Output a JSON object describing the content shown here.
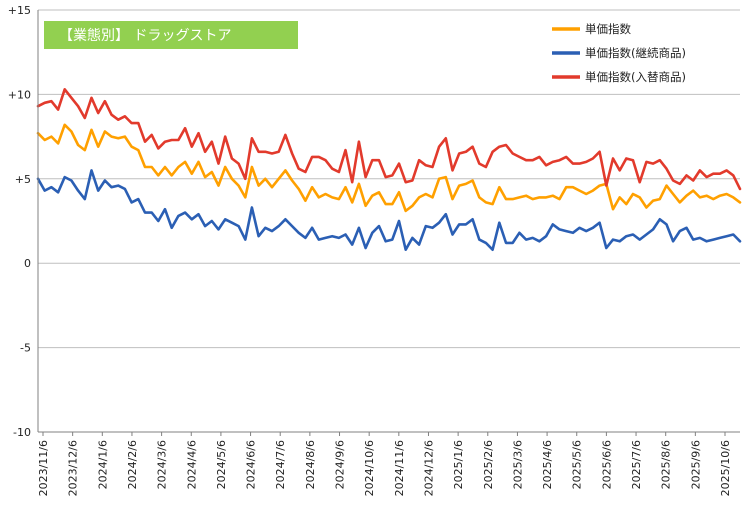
{
  "chart_data": {
    "type": "line",
    "title": "【業態別】 ドラッグストア",
    "title_bg_color": "#92d050",
    "xlabel": "",
    "ylabel": "",
    "ylim": [
      -10,
      15
    ],
    "yticks": [
      -10,
      -5,
      0,
      5,
      10,
      15
    ],
    "ytick_labels": [
      "-10",
      "-5",
      "0",
      "+5",
      "+10",
      "+15"
    ],
    "grid": "horizontal",
    "legend_position": "top-right",
    "x_tick_labels": [
      "2023/11/6",
      "2023/12/6",
      "2024/1/6",
      "2024/2/6",
      "2024/3/6",
      "2024/4/6",
      "2024/5/6",
      "2024/6/6",
      "2024/7/6",
      "2024/8/6",
      "2024/9/6",
      "2024/10/6",
      "2024/11/6",
      "2024/12/6",
      "2025/1/6",
      "2025/2/6",
      "2025/3/6",
      "2025/4/6",
      "2025/5/6",
      "2025/6/6",
      "2025/7/6",
      "2025/8/6",
      "2025/9/6",
      "2025/10/6"
    ],
    "series": [
      {
        "name": "単価指数",
        "color": "#ffa000",
        "values": [
          7.7,
          7.3,
          7.5,
          7.1,
          8.2,
          7.8,
          7.0,
          6.7,
          7.9,
          6.9,
          7.8,
          7.5,
          7.4,
          7.5,
          6.9,
          6.7,
          5.7,
          5.7,
          5.2,
          5.7,
          5.2,
          5.7,
          6.0,
          5.3,
          6.0,
          5.1,
          5.4,
          4.6,
          5.7,
          5.0,
          4.6,
          3.9,
          5.7,
          4.6,
          5.0,
          4.5,
          5.0,
          5.5,
          4.9,
          4.4,
          3.7,
          4.5,
          3.9,
          4.1,
          3.9,
          3.8,
          4.5,
          3.6,
          4.7,
          3.4,
          4.0,
          4.2,
          3.5,
          3.5,
          4.2,
          3.1,
          3.4,
          3.9,
          4.1,
          3.9,
          5.0,
          5.1,
          3.8,
          4.6,
          4.7,
          4.9,
          3.9,
          3.6,
          3.5,
          4.5,
          3.8,
          3.8,
          3.9,
          4.0,
          3.8,
          3.9,
          3.9,
          4.0,
          3.8,
          4.5,
          4.5,
          4.3,
          4.1,
          4.3,
          4.6,
          4.7,
          3.2,
          3.9,
          3.5,
          4.1,
          3.9,
          3.3,
          3.7,
          3.8,
          4.6,
          4.1,
          3.6,
          4.0,
          4.3,
          3.9,
          4.0,
          3.8,
          4.0,
          4.1,
          3.9,
          3.6
        ]
      },
      {
        "name": "単価指数(継続商品)",
        "color": "#2b5fb4",
        "values": [
          5.0,
          4.3,
          4.5,
          4.2,
          5.1,
          4.9,
          4.3,
          3.8,
          5.5,
          4.3,
          4.9,
          4.5,
          4.6,
          4.4,
          3.6,
          3.8,
          3.0,
          3.0,
          2.5,
          3.2,
          2.1,
          2.8,
          3.0,
          2.6,
          2.9,
          2.2,
          2.5,
          2.0,
          2.6,
          2.4,
          2.2,
          1.4,
          3.3,
          1.6,
          2.1,
          1.9,
          2.2,
          2.6,
          2.2,
          1.8,
          1.5,
          2.1,
          1.4,
          1.5,
          1.6,
          1.5,
          1.7,
          1.1,
          2.1,
          0.9,
          1.8,
          2.2,
          1.3,
          1.4,
          2.5,
          0.8,
          1.5,
          1.1,
          2.2,
          2.1,
          2.4,
          2.9,
          1.7,
          2.3,
          2.3,
          2.6,
          1.4,
          1.2,
          0.8,
          2.4,
          1.2,
          1.2,
          1.8,
          1.4,
          1.5,
          1.3,
          1.6,
          2.3,
          2.0,
          1.9,
          1.8,
          2.1,
          1.9,
          2.1,
          2.4,
          0.9,
          1.4,
          1.3,
          1.6,
          1.7,
          1.4,
          1.7,
          2.0,
          2.6,
          2.3,
          1.3,
          1.9,
          2.1,
          1.4,
          1.5,
          1.3,
          1.4,
          1.5,
          1.6,
          1.7,
          1.3
        ]
      },
      {
        "name": "単価指数(入替商品)",
        "color": "#e23a2c",
        "values": [
          9.3,
          9.5,
          9.6,
          9.1,
          10.3,
          9.8,
          9.3,
          8.6,
          9.8,
          8.9,
          9.6,
          8.8,
          8.5,
          8.7,
          8.3,
          8.3,
          7.2,
          7.6,
          6.8,
          7.2,
          7.3,
          7.3,
          8.0,
          6.9,
          7.7,
          6.6,
          7.2,
          5.9,
          7.5,
          6.2,
          5.9,
          5.0,
          7.4,
          6.6,
          6.6,
          6.5,
          6.6,
          7.6,
          6.5,
          5.6,
          5.4,
          6.3,
          6.3,
          6.1,
          5.6,
          5.4,
          6.7,
          4.8,
          7.2,
          5.1,
          6.1,
          6.1,
          5.1,
          5.2,
          5.9,
          4.8,
          4.9,
          6.1,
          5.8,
          5.7,
          6.9,
          7.4,
          5.5,
          6.5,
          6.6,
          6.9,
          5.9,
          5.7,
          6.6,
          6.9,
          7.0,
          6.5,
          6.3,
          6.1,
          6.1,
          6.3,
          5.8,
          6.0,
          6.1,
          6.3,
          5.9,
          5.9,
          6.0,
          6.2,
          6.6,
          4.6,
          6.2,
          5.5,
          6.2,
          6.1,
          4.8,
          6.0,
          5.9,
          6.1,
          5.6,
          4.9,
          4.7,
          5.2,
          4.9,
          5.5,
          5.1,
          5.3,
          5.3,
          5.5,
          5.2,
          4.4
        ]
      }
    ]
  }
}
